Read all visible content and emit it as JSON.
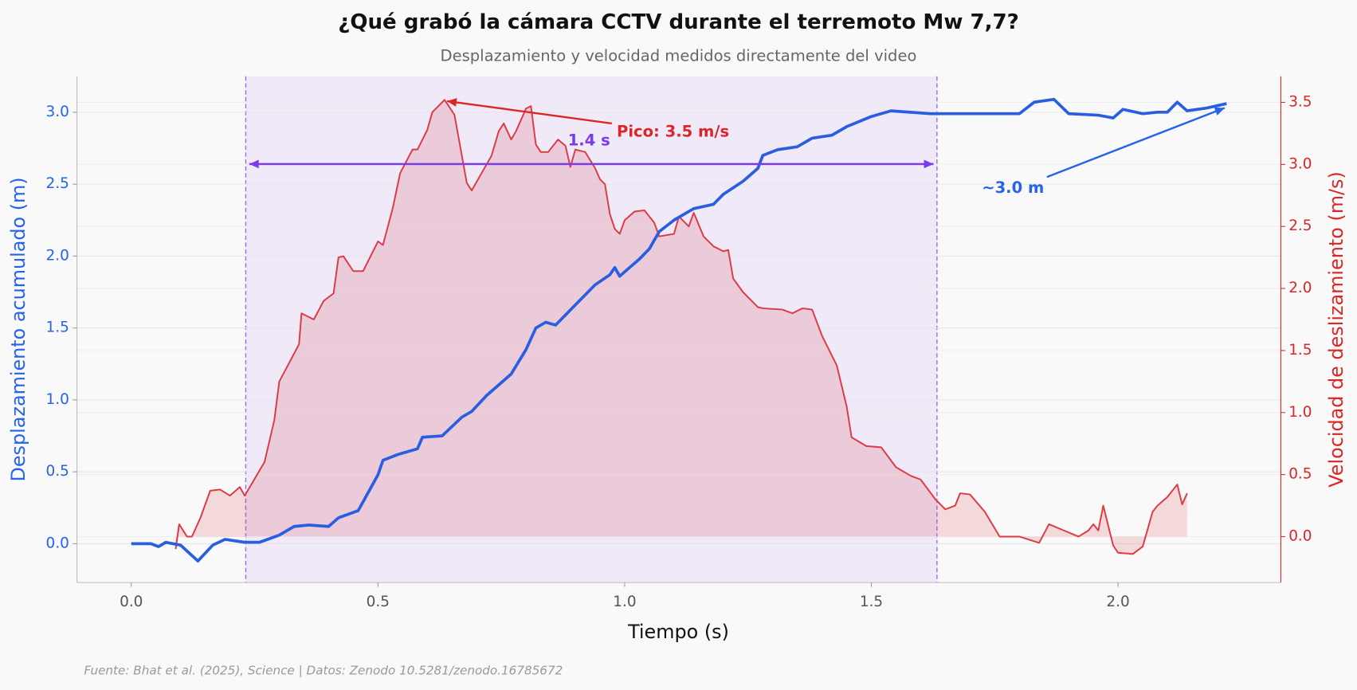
{
  "chart_data": {
    "type": "line",
    "title": "¿Qué grabó la cámara CCTV durante el terremoto Mw 7,7?",
    "subtitle": "Desplazamiento y velocidad medidos directamente del video",
    "x_label": "Tiempo (s)",
    "y_label": "Desplazamiento acumulado (m)",
    "y2_label": "Velocidad de deslizamiento (m/s)",
    "source": "Fuente: Bhat et al. (2025), Science | Datos: Zenodo 10.5281/zenodo.16785672",
    "xlim": [
      -0.11,
      2.33
    ],
    "ylim": [
      -0.27,
      3.25
    ],
    "y2lim": [
      -0.37,
      3.71
    ],
    "xticks": [
      {
        "value": 0,
        "label": "0.0"
      },
      0.5,
      {
        "value": 1,
        "label": "1.0"
      },
      1.5,
      {
        "value": 2,
        "label": "2.0"
      }
    ],
    "yticks": [
      {
        "value": 0,
        "label": "0.0"
      },
      0.5,
      {
        "value": 1,
        "label": "1.0"
      },
      1.5,
      {
        "value": 2,
        "label": "2.0"
      },
      2.5,
      {
        "value": 3,
        "label": "3.0"
      }
    ],
    "y2ticks": [
      {
        "value": 0,
        "label": "0.0"
      },
      0.5,
      {
        "value": 1,
        "label": "1.0"
      },
      1.5,
      {
        "value": 2,
        "label": "2.0"
      },
      2.5,
      {
        "value": 3,
        "label": "3.0"
      },
      3.5
    ],
    "grid": true,
    "y_color": "#2563eb",
    "y2_color": "#dc2626",
    "series": [
      {
        "name": "Velocidad",
        "axis": "y2",
        "fill": true,
        "color": "#dc3a44",
        "x": [
          0.09,
          0.097,
          0.113,
          0.123,
          0.14,
          0.16,
          0.18,
          0.2,
          0.22,
          0.23,
          0.27,
          0.29,
          0.3,
          0.34,
          0.345,
          0.37,
          0.39,
          0.41,
          0.42,
          0.43,
          0.45,
          0.47,
          0.5,
          0.51,
          0.53,
          0.545,
          0.57,
          0.58,
          0.6,
          0.61,
          0.635,
          0.655,
          0.68,
          0.69,
          0.73,
          0.745,
          0.755,
          0.77,
          0.78,
          0.8,
          0.81,
          0.82,
          0.83,
          0.845,
          0.865,
          0.88,
          0.89,
          0.9,
          0.92,
          0.94,
          0.95,
          0.96,
          0.97,
          0.98,
          0.99,
          1.0,
          1.02,
          1.04,
          1.06,
          1.07,
          1.1,
          1.11,
          1.13,
          1.14,
          1.16,
          1.18,
          1.2,
          1.21,
          1.22,
          1.24,
          1.27,
          1.28,
          1.32,
          1.34,
          1.36,
          1.38,
          1.4,
          1.43,
          1.45,
          1.46,
          1.49,
          1.52,
          1.55,
          1.58,
          1.6,
          1.63,
          1.65,
          1.67,
          1.68,
          1.7,
          1.73,
          1.76,
          1.8,
          1.84,
          1.86,
          1.89,
          1.92,
          1.94,
          1.95,
          1.96,
          1.97,
          1.99,
          2.0,
          2.03,
          2.05,
          2.07,
          2.08,
          2.1,
          2.12,
          2.13,
          2.14
        ],
        "values": [
          -0.1,
          0.1,
          0.0,
          0.0,
          0.15,
          0.37,
          0.38,
          0.33,
          0.4,
          0.33,
          0.6,
          0.94,
          1.25,
          1.55,
          1.8,
          1.75,
          1.9,
          1.96,
          2.25,
          2.26,
          2.14,
          2.14,
          2.38,
          2.35,
          2.65,
          2.93,
          3.12,
          3.12,
          3.28,
          3.42,
          3.52,
          3.4,
          2.85,
          2.79,
          3.07,
          3.27,
          3.33,
          3.2,
          3.27,
          3.45,
          3.47,
          3.16,
          3.1,
          3.1,
          3.2,
          3.15,
          2.98,
          3.12,
          3.1,
          2.97,
          2.88,
          2.84,
          2.6,
          2.48,
          2.44,
          2.55,
          2.62,
          2.63,
          2.53,
          2.42,
          2.44,
          2.58,
          2.5,
          2.61,
          2.42,
          2.34,
          2.3,
          2.31,
          2.08,
          1.97,
          1.85,
          1.84,
          1.83,
          1.8,
          1.84,
          1.83,
          1.62,
          1.38,
          1.05,
          0.8,
          0.73,
          0.72,
          0.56,
          0.49,
          0.46,
          0.3,
          0.22,
          0.25,
          0.35,
          0.34,
          0.2,
          0.0,
          0.0,
          -0.05,
          0.1,
          0.05,
          0.0,
          0.05,
          0.1,
          0.05,
          0.25,
          -0.07,
          -0.13,
          -0.14,
          -0.08,
          0.2,
          0.25,
          0.32,
          0.42,
          0.26,
          0.35
        ]
      },
      {
        "name": "Desplazamiento",
        "axis": "y",
        "fill": false,
        "color": "#2a5ee0",
        "x": [
          0,
          0.04,
          0.055,
          0.07,
          0.1,
          0.135,
          0.165,
          0.19,
          0.23,
          0.26,
          0.3,
          0.33,
          0.36,
          0.4,
          0.42,
          0.46,
          0.5,
          0.51,
          0.54,
          0.58,
          0.59,
          0.63,
          0.67,
          0.69,
          0.72,
          0.77,
          0.8,
          0.82,
          0.84,
          0.86,
          0.9,
          0.94,
          0.97,
          0.98,
          0.99,
          1.03,
          1.05,
          1.07,
          1.1,
          1.14,
          1.18,
          1.2,
          1.24,
          1.27,
          1.28,
          1.31,
          1.35,
          1.38,
          1.42,
          1.45,
          1.5,
          1.54,
          1.62,
          1.7,
          1.8,
          1.83,
          1.87,
          1.9,
          1.96,
          1.99,
          2.01,
          2.05,
          2.08,
          2.1,
          2.12,
          2.14,
          2.18,
          2.22
        ],
        "values": [
          0,
          0,
          -0.02,
          0.01,
          -0.01,
          -0.12,
          -0.01,
          0.03,
          0.01,
          0.01,
          0.06,
          0.12,
          0.13,
          0.12,
          0.18,
          0.23,
          0.48,
          0.58,
          0.62,
          0.66,
          0.74,
          0.75,
          0.88,
          0.92,
          1.03,
          1.18,
          1.35,
          1.5,
          1.54,
          1.52,
          1.66,
          1.8,
          1.87,
          1.92,
          1.86,
          1.98,
          2.05,
          2.17,
          2.25,
          2.33,
          2.36,
          2.43,
          2.52,
          2.61,
          2.7,
          2.74,
          2.76,
          2.82,
          2.84,
          2.9,
          2.97,
          3.01,
          2.99,
          2.99,
          2.99,
          3.07,
          3.09,
          2.99,
          2.98,
          2.96,
          3.02,
          2.99,
          3.0,
          3.0,
          3.07,
          3.01,
          3.03,
          3.06
        ]
      }
    ],
    "span": {
      "x": [
        0.232,
        1.633
      ],
      "color": "#9b6ef0",
      "fill": "#efe9f8",
      "arrow_y": 2.64,
      "label": "1.4 s",
      "label_xy": [
        0.885,
        2.8
      ],
      "label_color": "#7c3aed"
    },
    "annotations": [
      {
        "text": "Pico: 3.5 m/s",
        "axis": "y2",
        "color": "#dc2626",
        "xytext": [
          0.984,
          3.26
        ],
        "arrow_from": [
          0.974,
          3.33
        ],
        "xy": [
          0.64,
          3.51
        ]
      },
      {
        "text": "~3.0 m",
        "axis": "y",
        "color": "#2563eb",
        "xytext": [
          1.724,
          2.47
        ],
        "arrow_from": [
          1.856,
          2.55
        ],
        "xy": [
          2.216,
          3.03
        ]
      }
    ]
  }
}
